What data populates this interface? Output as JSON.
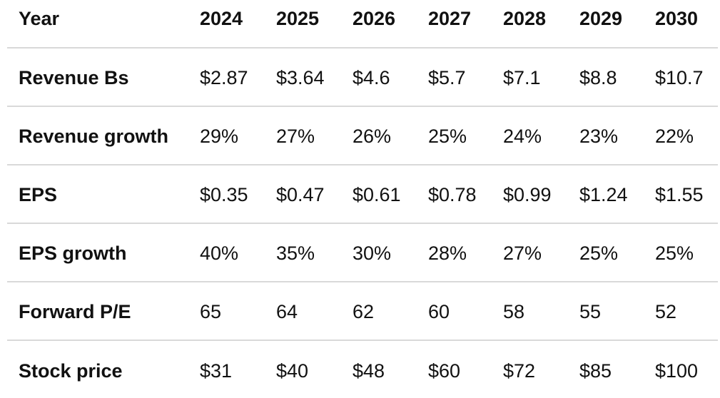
{
  "table": {
    "header": {
      "label": "Year",
      "years": [
        "2024",
        "2025",
        "2026",
        "2027",
        "2028",
        "2029",
        "2030"
      ]
    },
    "rows": [
      {
        "label": "Revenue Bs",
        "values": [
          "$2.87",
          "$3.64",
          "$4.6",
          "$5.7",
          "$7.1",
          "$8.8",
          "$10.7"
        ]
      },
      {
        "label": "Revenue growth",
        "values": [
          "29%",
          "27%",
          "26%",
          "25%",
          "24%",
          "23%",
          "22%"
        ]
      },
      {
        "label": "EPS",
        "values": [
          "$0.35",
          "$0.47",
          "$0.61",
          "$0.78",
          "$0.99",
          "$1.24",
          "$1.55"
        ]
      },
      {
        "label": "EPS growth",
        "values": [
          "40%",
          "35%",
          "30%",
          "28%",
          "27%",
          "25%",
          "25%"
        ]
      },
      {
        "label": "Forward P/E",
        "values": [
          "65",
          "64",
          "62",
          "60",
          "58",
          "55",
          "52"
        ]
      },
      {
        "label": "Stock price",
        "values": [
          "$31",
          "$40",
          "$48",
          "$60",
          "$72",
          "$85",
          "$100"
        ]
      }
    ]
  }
}
